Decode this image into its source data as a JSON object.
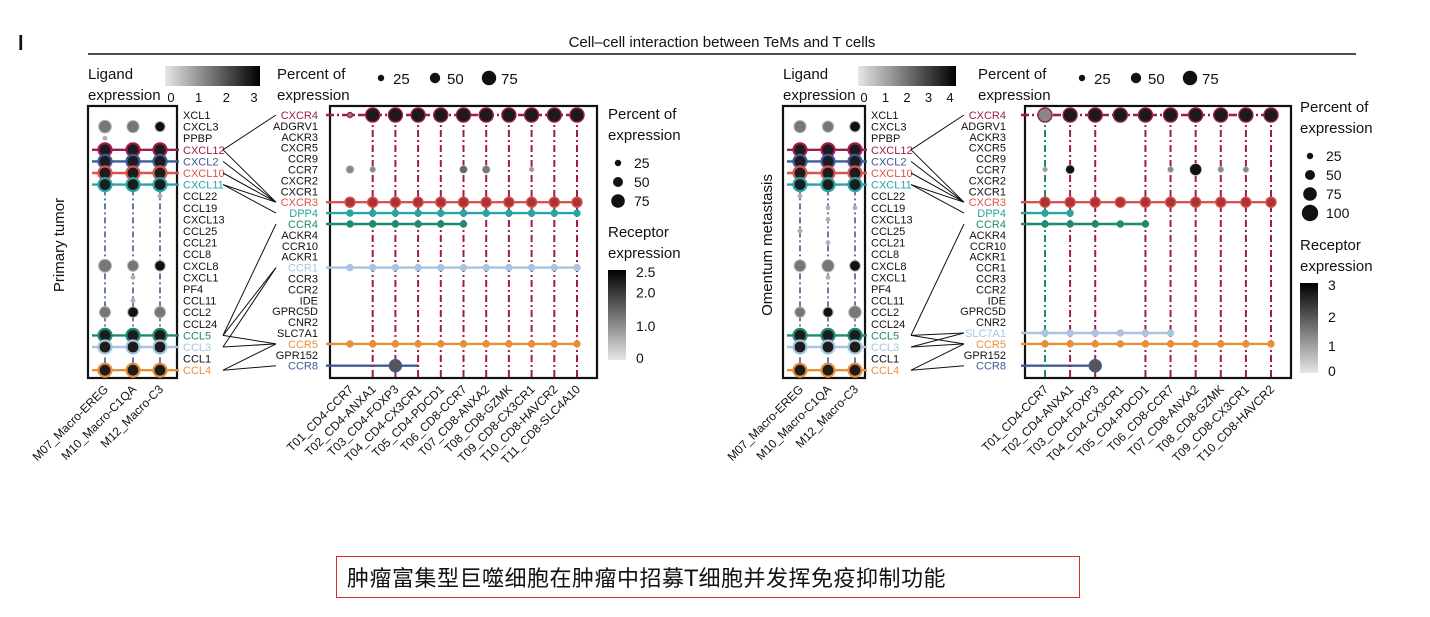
{
  "panel_letter": "l",
  "title": "Cell–cell interaction between TeMs and T cells",
  "caption": "肿瘤富集型巨噬细胞在肿瘤中招募T细胞并发挥免疫抑制功能",
  "colors": {
    "CXCL12": "#a01c4c",
    "CXCR4": "#a01c4c",
    "CXCL2": "#3f5a9a",
    "CXCL10": "#d9534f",
    "CXCR3": "#d9534f",
    "CXCL11": "#2aa3a3",
    "CCL5": "#1f8a70",
    "CCR1": "#a8c4e0",
    "CCL3": "#a8c4e0",
    "CCL4": "#e6903a",
    "CCR5": "#e6903a",
    "CCR8": "#3f5a9a",
    "DPP4": "#2aa3a3",
    "CCR4": "#1f8a70",
    "SLC7A1": "#a8c4e0"
  },
  "chart_data": [
    {
      "type": "scatter",
      "name_label": "Primary tumor",
      "ligand_legend": {
        "title": "Ligand\nexpression",
        "ticks": [
          "0",
          "1",
          "2",
          "3"
        ]
      },
      "percent_legend_top": {
        "title": "Percent of\nexpression",
        "values": [
          "25",
          "50",
          "75"
        ]
      },
      "percent_legend_right": {
        "title": "Percent of\nexpression",
        "values": [
          "25",
          "50",
          "75"
        ]
      },
      "receptor_legend": {
        "title": "Receptor\nexpression",
        "ticks": [
          "2.5",
          "2.0",
          "1.0",
          "0"
        ]
      },
      "macrophages": [
        "M07_Macro-EREG",
        "M10_Macro-C1QA",
        "M12_Macro-C3"
      ],
      "ligands": [
        "XCL1",
        "CXCL3",
        "PPBP",
        "CXCL12",
        "CXCL2",
        "CXCL10",
        "CXCL11",
        "CCL22",
        "CCL19",
        "CXCL13",
        "CCL25",
        "CCL21",
        "CCL8",
        "CXCL8",
        "CXCL1",
        "PF4",
        "CCL11",
        "CCL2",
        "CCL24",
        "CCL5",
        "CCL3",
        "CCL1",
        "CCL4"
      ],
      "highlight_ligands": [
        "CXCL12",
        "CXCL2",
        "CXCL10",
        "CXCL11",
        "CCL5",
        "CCL3",
        "CCL4"
      ],
      "receptors": [
        "CXCR4",
        "ADGRV1",
        "ACKR3",
        "CXCR5",
        "CCR9",
        "CCR7",
        "CXCR2",
        "CXCR1",
        "CXCR3",
        "DPP4",
        "CCR4",
        "ACKR4",
        "CCR10",
        "ACKR1",
        "CCR1",
        "CCR3",
        "CCR2",
        "IDE",
        "GPRC5D",
        "CNR2",
        "SLC7A1",
        "CCR5",
        "GPR152",
        "CCR8"
      ],
      "highlight_receptors": [
        "CXCR4",
        "CXCR3",
        "DPP4",
        "CCR4",
        "CCR1",
        "CCR5",
        "CCR8"
      ],
      "tcells": [
        "T01_CD4-CCR7",
        "T02_CD4-ANXA1",
        "T03_CD4-FOXP3",
        "T04_CD4-CX3CR1",
        "T05_CD4-PDCD1",
        "T06_CD8-CCR7",
        "T07_CD8-ANXA2",
        "T08_CD8-GZMK",
        "T09_CD8-CX3CR1",
        "T10_CD8-HAVCR2",
        "T11_CD8-SLC4A10"
      ]
    },
    {
      "type": "scatter",
      "name_label": "Omentum metastasis",
      "ligand_legend": {
        "title": "Ligand\nexpression",
        "ticks": [
          "0",
          "1",
          "2",
          "3",
          "4"
        ]
      },
      "percent_legend_top": {
        "title": "Percent of\nexpression",
        "values": [
          "25",
          "50",
          "75"
        ]
      },
      "percent_legend_right": {
        "title": "Percent of\nexpression",
        "values": [
          "25",
          "50",
          "75",
          "100"
        ]
      },
      "receptor_legend": {
        "title": "Receptor\nexpression",
        "ticks": [
          "3",
          "2",
          "1",
          "0"
        ]
      },
      "macrophages": [
        "M07_Macro-EREG",
        "M10_Macro-C1QA",
        "M12_Macro-C3"
      ],
      "ligands": [
        "XCL1",
        "CXCL3",
        "PPBP",
        "CXCL12",
        "CXCL2",
        "CXCL10",
        "CXCL11",
        "CCL22",
        "CCL19",
        "CXCL13",
        "CCL25",
        "CCL21",
        "CCL8",
        "CXCL8",
        "CXCL1",
        "PF4",
        "CCL11",
        "CCL2",
        "CCL24",
        "CCL5",
        "CCL3",
        "CCL1",
        "CCL4"
      ],
      "highlight_ligands": [
        "CXCL12",
        "CXCL2",
        "CXCL10",
        "CXCL11",
        "CCL5",
        "CCL3",
        "CCL4"
      ],
      "receptors": [
        "CXCR4",
        "ADGRV1",
        "ACKR3",
        "CXCR5",
        "CCR9",
        "CCR7",
        "CXCR2",
        "CXCR1",
        "CXCR3",
        "DPP4",
        "CCR4",
        "ACKR4",
        "CCR10",
        "ACKR1",
        "CCR1",
        "CCR3",
        "CCR2",
        "IDE",
        "GPRC5D",
        "CNR2",
        "SLC7A1",
        "CCR5",
        "GPR152",
        "CCR8"
      ],
      "highlight_receptors": [
        "CXCR4",
        "CXCR3",
        "DPP4",
        "CCR4",
        "SLC7A1",
        "CCR5",
        "CCR8"
      ],
      "tcells": [
        "T01_CD4-CCR7",
        "T02_CD4-ANXA1",
        "T03_CD4-FOXP3",
        "T04_CD4-CX3CR1",
        "T05_CD4-PDCD1",
        "T06_CD8-CCR7",
        "T07_CD8-ANXA2",
        "T08_CD8-GZMK",
        "T09_CD8-CX3CR1",
        "T10_CD8-HAVCR2"
      ]
    }
  ]
}
